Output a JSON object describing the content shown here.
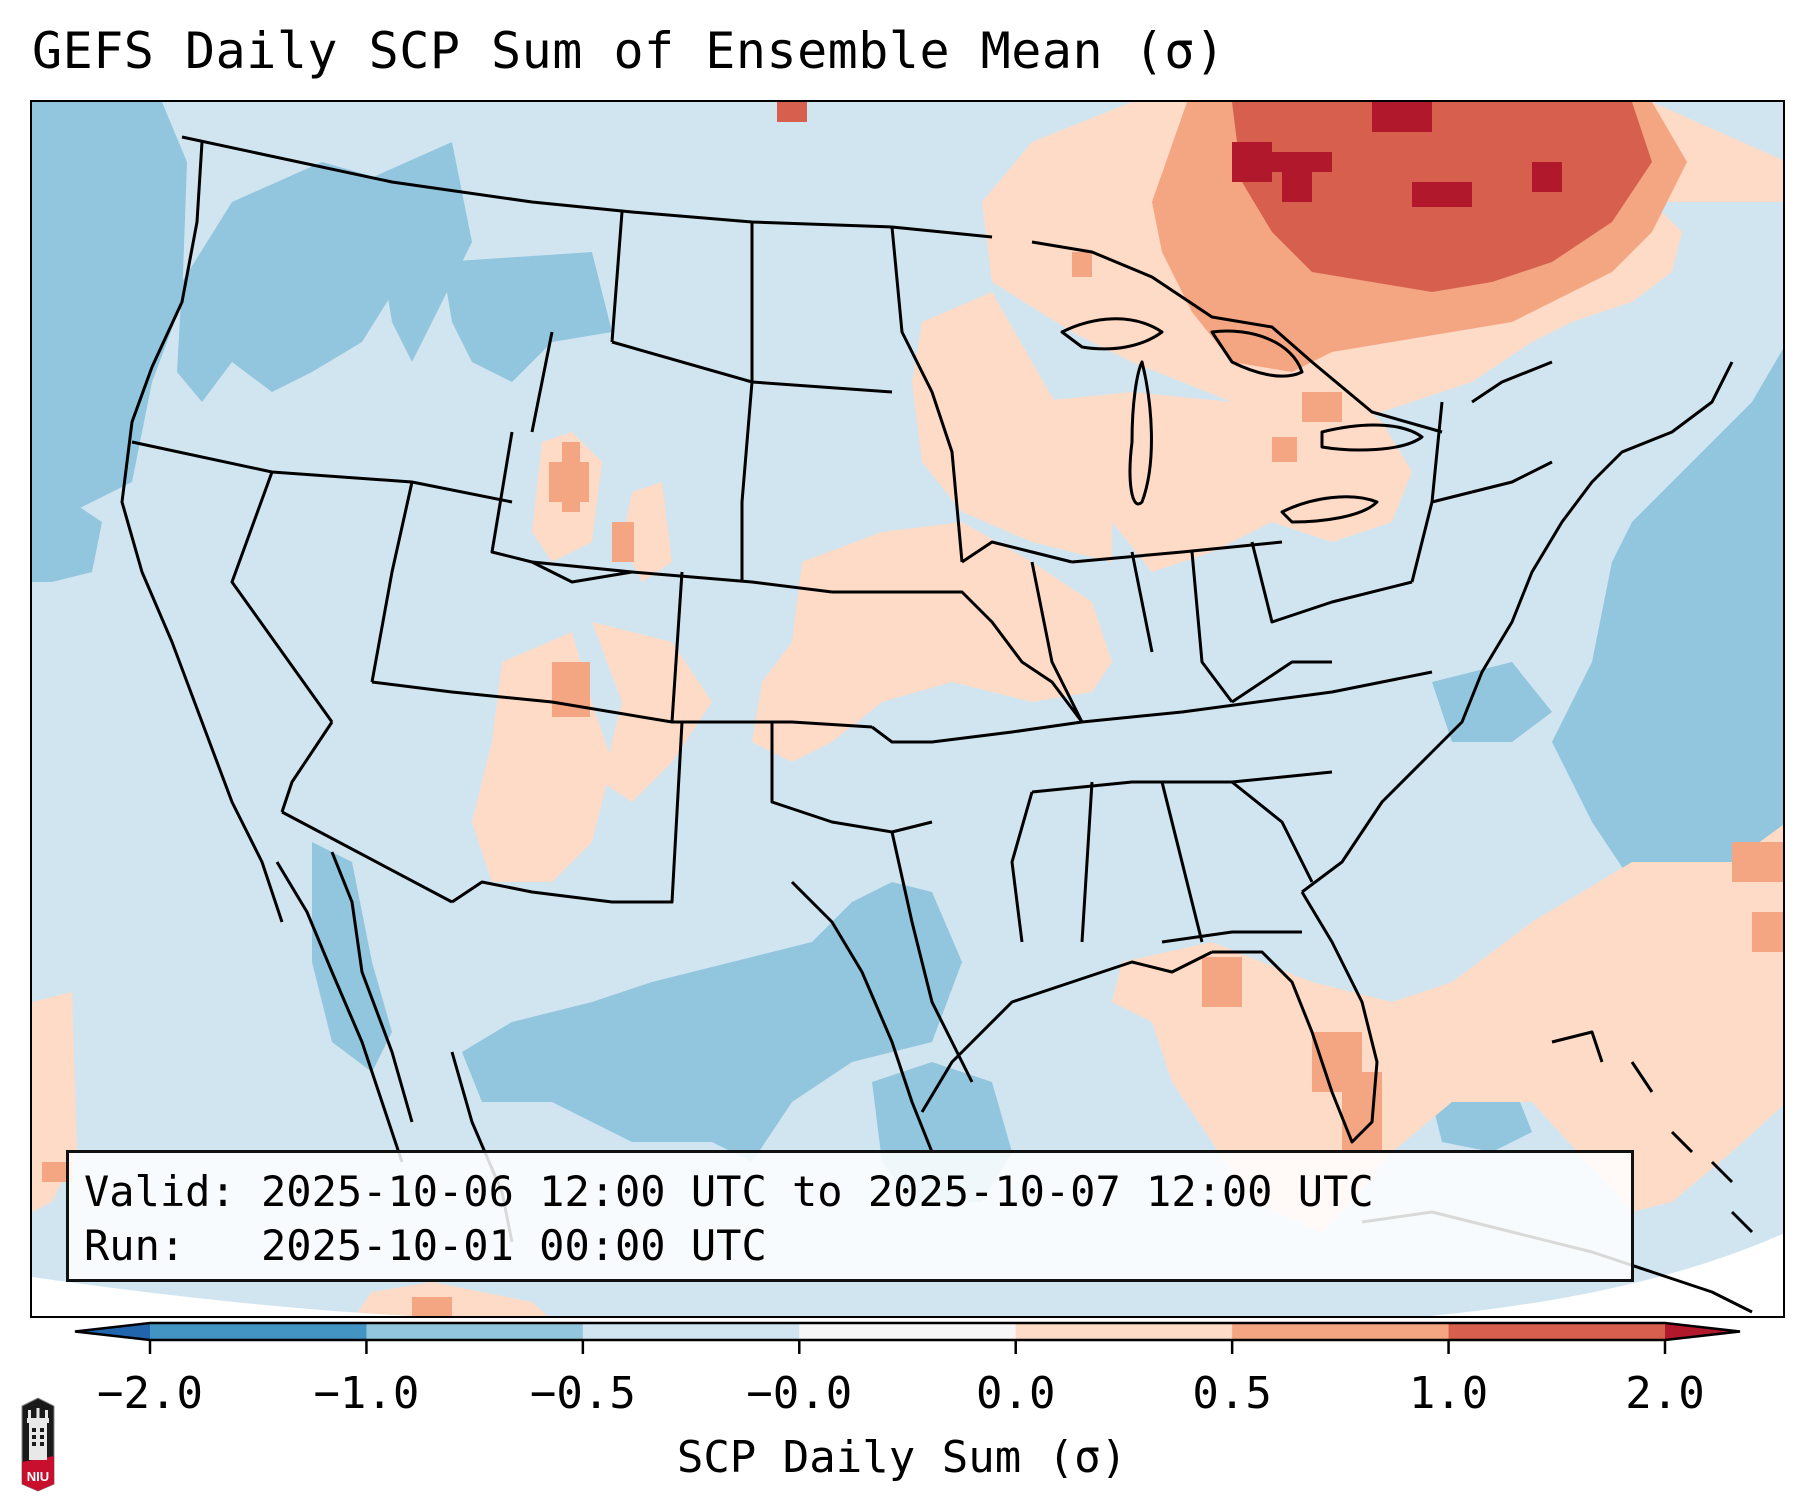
{
  "title": "GEFS Daily SCP Sum of Ensemble Mean (σ)",
  "info_box": {
    "valid_label": "Valid:",
    "valid_value": "2025-10-06 12:00 UTC to 2025-10-07 12:00 UTC",
    "run_label": "Run:",
    "run_value": "2025-10-01 00:00 UTC"
  },
  "colorbar": {
    "label": "SCP Daily Sum (σ)",
    "ticks": [
      "−2.0",
      "−1.0",
      "−0.5",
      "−0.0",
      "0.0",
      "0.5",
      "1.0",
      "2.0"
    ],
    "bins": [
      {
        "range": "< -2.0",
        "color": "#2166ac"
      },
      {
        "range": "-2.0 to -1.0",
        "color": "#4393c3"
      },
      {
        "range": "-1.0 to -0.5",
        "color": "#92c5de"
      },
      {
        "range": "-0.5 to -0.0",
        "color": "#d1e5f0"
      },
      {
        "range": "-0.0 to 0.0",
        "color": "#f7f7f7"
      },
      {
        "range": "0.0 to 0.5",
        "color": "#fddbc7"
      },
      {
        "range": "0.5 to 1.0",
        "color": "#f4a582"
      },
      {
        "range": "1.0 to 2.0",
        "color": "#d6604d"
      },
      {
        "range": "> 2.0",
        "color": "#b2182b"
      }
    ],
    "extend": "both"
  },
  "map": {
    "projection": "Lambert Conformal",
    "domain": "CONUS",
    "regions": [
      {
        "name": "Quebec / Ontario",
        "anomaly": "1.0 to 2.0 (local > 2.0)"
      },
      {
        "name": "Great Lakes / Upper Midwest",
        "anomaly": "0.0 to 0.5 (local 0.5 to 1.0)"
      },
      {
        "name": "Central Plains",
        "anomaly": "0.0 to 0.5"
      },
      {
        "name": "New Mexico / Colorado",
        "anomaly": "0.0 to 0.5 (local 0.5 to 1.0)"
      },
      {
        "name": "Florida / Gulf / W Atlantic",
        "anomaly": "0.0 to 0.5 (local 0.5 to 1.0)"
      },
      {
        "name": "Pacific Northwest / Pacific",
        "anomaly": "-1.0 to -0.5"
      },
      {
        "name": "Northern Mexico / West Texas",
        "anomaly": "-1.0 to -0.5"
      },
      {
        "name": "Mid-Atlantic Ocean",
        "anomaly": "-1.0 to -0.5"
      },
      {
        "name": "Rest of CONUS",
        "anomaly": "-0.5 to -0.0"
      }
    ]
  },
  "logo": {
    "text": "NIU"
  }
}
